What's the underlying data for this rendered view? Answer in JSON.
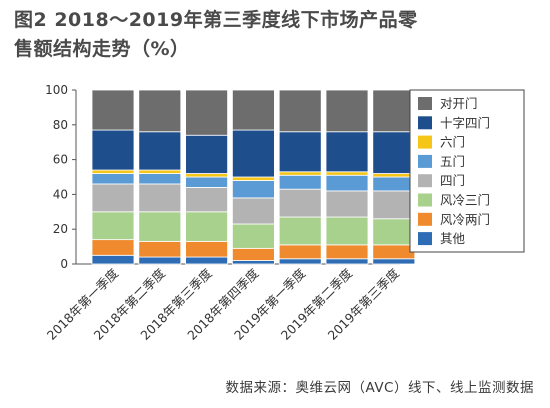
{
  "title": "图2  2018～2019年第三季度线下市场产品零售额结构走势（%）",
  "source": "数据来源：奥维云网（AVC）线下、线上监测数据",
  "chart_data": {
    "type": "bar",
    "stacked": true,
    "categories": [
      "2018年第一季度",
      "2018年第二季度",
      "2018年第三季度",
      "2018年第四季度",
      "2019年第一季度",
      "2019年第二季度",
      "2019年第三季度"
    ],
    "ylim": [
      0,
      100
    ],
    "yticks": [
      0,
      20,
      40,
      60,
      80,
      100
    ],
    "legend_position": "right",
    "series": [
      {
        "name": "其他",
        "color": "#2e6db5",
        "values": [
          5,
          4,
          4,
          2,
          3,
          3,
          3
        ]
      },
      {
        "name": "风冷两门",
        "color": "#f08a2e",
        "values": [
          9,
          9,
          9,
          7,
          8,
          8,
          8
        ]
      },
      {
        "name": "风冷三门",
        "color": "#a9d18e",
        "values": [
          16,
          17,
          17,
          14,
          16,
          16,
          15
        ]
      },
      {
        "name": "四门",
        "color": "#b3b3b3",
        "values": [
          16,
          16,
          14,
          15,
          16,
          15,
          16
        ]
      },
      {
        "name": "五门",
        "color": "#5b9bd5",
        "values": [
          6,
          6,
          6,
          10,
          8,
          9,
          8
        ]
      },
      {
        "name": "六门",
        "color": "#f5c518",
        "values": [
          2,
          2,
          2,
          2,
          2,
          2,
          2
        ]
      },
      {
        "name": "十字四门",
        "color": "#1f4e8c",
        "values": [
          23,
          22,
          22,
          27,
          23,
          23,
          24
        ]
      },
      {
        "name": "对开门",
        "color": "#6d6d6d",
        "values": [
          23,
          24,
          26,
          23,
          24,
          24,
          24
        ]
      }
    ]
  }
}
